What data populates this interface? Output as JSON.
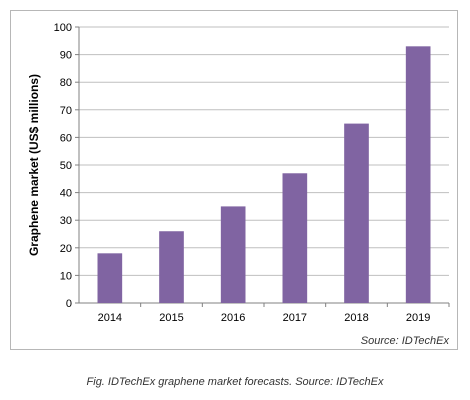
{
  "colors": {
    "bar": "#8064a2",
    "axis": "#808080",
    "grid": "#bfbfbf",
    "frame": "#b7b7b7"
  },
  "chart_data": {
    "type": "bar",
    "title": "",
    "xlabel": "",
    "ylabel": "Graphene market (US$ millions)",
    "categories": [
      "2014",
      "2015",
      "2016",
      "2017",
      "2018",
      "2019"
    ],
    "values": [
      18,
      26,
      35,
      47,
      65,
      93
    ],
    "ylim": [
      0,
      100
    ],
    "yticks": [
      0,
      10,
      20,
      30,
      40,
      50,
      60,
      70,
      80,
      90,
      100
    ],
    "grid": true,
    "legend": "none"
  },
  "source_note": "Source: IDTechEx",
  "caption": "Fig. IDTechEx graphene market forecasts. Source: IDTechEx"
}
